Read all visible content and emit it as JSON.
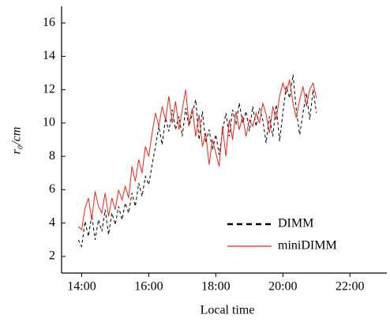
{
  "chart_data": {
    "type": "line",
    "x_label": "Local time",
    "y_label": "r₀/cm",
    "x": [
      13.9,
      14.0,
      14.1,
      14.2,
      14.3,
      14.4,
      14.5,
      14.6,
      14.7,
      14.8,
      14.9,
      15.0,
      15.1,
      15.2,
      15.3,
      15.4,
      15.5,
      15.6,
      15.7,
      15.8,
      15.9,
      16.0,
      16.1,
      16.2,
      16.3,
      16.4,
      16.5,
      16.6,
      16.7,
      16.8,
      16.9,
      17.0,
      17.1,
      17.2,
      17.3,
      17.4,
      17.5,
      17.6,
      17.7,
      17.8,
      17.9,
      18.0,
      18.1,
      18.2,
      18.3,
      18.4,
      18.5,
      18.6,
      18.7,
      18.8,
      18.9,
      19.0,
      19.1,
      19.2,
      19.3,
      19.4,
      19.5,
      19.6,
      19.7,
      19.8,
      19.9,
      20.0,
      20.1,
      20.2,
      20.3,
      20.4,
      20.5,
      20.6,
      20.7,
      20.8,
      20.9,
      21.0
    ],
    "series": [
      {
        "name": "DIMM",
        "color": "#000000",
        "dashed": true,
        "values": [
          3.0,
          2.6,
          4.1,
          3.2,
          4.5,
          3.0,
          4.2,
          3.5,
          4.8,
          3.3,
          4.6,
          3.9,
          5.0,
          4.2,
          5.2,
          4.6,
          5.8,
          5.0,
          6.4,
          5.6,
          6.8,
          6.3,
          7.5,
          8.6,
          9.8,
          8.7,
          10.3,
          9.5,
          10.8,
          9.6,
          10.4,
          9.2,
          10.9,
          9.8,
          10.6,
          11.4,
          9.0,
          10.7,
          8.8,
          9.6,
          8.4,
          9.3,
          8.1,
          9.5,
          10.6,
          9.2,
          10.8,
          9.9,
          11.2,
          10.0,
          10.7,
          9.5,
          11.0,
          9.8,
          10.9,
          10.2,
          8.8,
          10.4,
          9.2,
          11.1,
          8.9,
          10.6,
          12.2,
          11.5,
          12.9,
          10.8,
          9.3,
          10.6,
          11.8,
          10.2,
          12.0,
          10.6
        ]
      },
      {
        "name": "miniDIMM",
        "color": "#e8261c",
        "dashed": false,
        "values": [
          3.8,
          3.6,
          4.9,
          5.5,
          4.2,
          5.9,
          5.0,
          4.6,
          5.8,
          4.4,
          5.5,
          4.8,
          6.0,
          5.4,
          6.2,
          5.5,
          7.4,
          6.5,
          7.8,
          7.0,
          8.6,
          8.0,
          9.4,
          10.6,
          9.8,
          11.0,
          10.2,
          11.6,
          10.0,
          11.3,
          9.6,
          10.8,
          12.0,
          9.9,
          10.9,
          9.2,
          10.5,
          8.6,
          9.4,
          7.5,
          9.0,
          8.2,
          7.4,
          9.8,
          8.0,
          10.2,
          9.0,
          10.7,
          9.6,
          10.4,
          9.2,
          10.2,
          9.8,
          10.6,
          10.0,
          11.2,
          10.5,
          9.4,
          11.0,
          10.2,
          11.6,
          12.4,
          11.8,
          12.6,
          11.2,
          10.3,
          11.4,
          12.2,
          11.0,
          12.0,
          12.4,
          11.5
        ]
      }
    ],
    "xlim": [
      13.4,
      23.1
    ],
    "xticks": [
      {
        "value": 14,
        "label": "14:00"
      },
      {
        "value": 16,
        "label": "16:00"
      },
      {
        "value": 18,
        "label": "18:00"
      },
      {
        "value": 20,
        "label": "20:00"
      },
      {
        "value": 22,
        "label": "22:00"
      }
    ],
    "ylim": [
      1,
      17
    ],
    "yticks": [
      2,
      4,
      6,
      8,
      10,
      12,
      14,
      16
    ],
    "legend": "lower right"
  }
}
